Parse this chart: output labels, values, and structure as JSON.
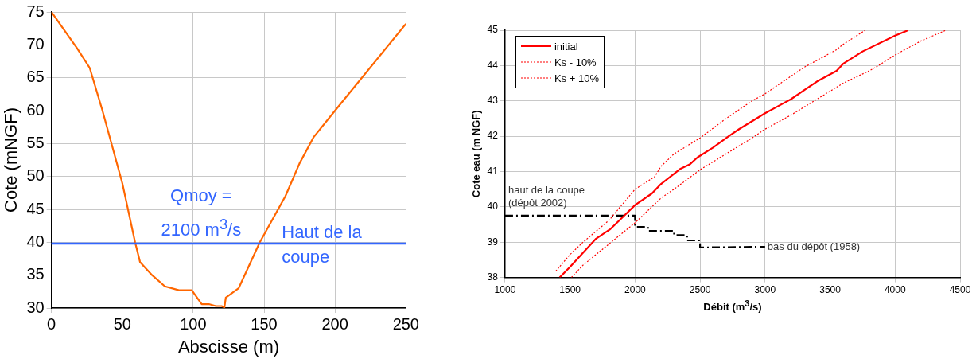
{
  "chart_data": [
    {
      "type": "line",
      "xlabel": "Abscisse (m)",
      "ylabel": "Cote (mNGF)",
      "xlim": [
        0,
        250
      ],
      "ylim": [
        30,
        75
      ],
      "xticks": [
        0,
        50,
        100,
        150,
        200,
        250
      ],
      "yticks": [
        30,
        35,
        40,
        45,
        50,
        55,
        60,
        65,
        70,
        75
      ],
      "grid": true,
      "marker": "none",
      "line_style": "solid",
      "series": [
        {
          "color": "#ff6600",
          "x": [
            0,
            18,
            27,
            36,
            50,
            59,
            62.5,
            71,
            80,
            90,
            99,
            102,
            106,
            111,
            116,
            120,
            122,
            123,
            132,
            147,
            165,
            175,
            185,
            200,
            250
          ],
          "values": [
            75,
            69.5,
            66.5,
            60,
            49,
            40,
            37,
            35,
            33.3,
            32.7,
            32.7,
            31.8,
            30.6,
            30.6,
            30.3,
            30.3,
            30.1,
            31.6,
            33,
            40,
            47,
            52,
            56,
            60,
            73.2
          ]
        }
      ],
      "ref_lines": [
        {
          "axis": "y",
          "value": 39.8,
          "label": "Haut de la coupe",
          "color": "#3366ff"
        }
      ],
      "annotations": [
        "Qmoy = 2100 m$^{3}$/s"
      ]
    },
    {
      "type": "line",
      "xlabel": "Débit (m$^{3}$/s)",
      "ylabel": "Cote eau (m NGF)",
      "xlim": [
        1000,
        4500
      ],
      "ylim": [
        38,
        45
      ],
      "xticks": [
        1000,
        1500,
        2000,
        2500,
        3000,
        3500,
        4000,
        4500
      ],
      "yticks": [
        38,
        39,
        40,
        41,
        42,
        43,
        44,
        45
      ],
      "grid": true,
      "legend": "top left",
      "marker": "none",
      "series": [
        {
          "name": "initial",
          "color": "#ff0000",
          "line_style": "solid",
          "x": [
            1420,
            1500,
            1600,
            1700,
            1810,
            1880,
            2000,
            2130,
            2200,
            2350,
            2420,
            2480,
            2600,
            2720,
            2800,
            3000,
            3100,
            3200,
            3320,
            3400,
            3550,
            3600,
            3750,
            4000,
            4100
          ],
          "values": [
            38,
            38.3,
            38.7,
            39.1,
            39.37,
            39.62,
            40.05,
            40.38,
            40.65,
            41.08,
            41.2,
            41.4,
            41.68,
            42,
            42.2,
            42.65,
            42.85,
            43.05,
            43.35,
            43.55,
            43.85,
            44.05,
            44.4,
            44.85,
            45
          ]
        },
        {
          "name": "Ks - 10%",
          "color": "#ff0000",
          "line_style": "dotted",
          "x": [
            1390,
            1500,
            1600,
            1800,
            2000,
            2150,
            2200,
            2300,
            2500,
            2700,
            2900,
            3000,
            3200,
            3300,
            3500,
            3550,
            3600,
            3770
          ],
          "values": [
            38.18,
            38.65,
            39,
            39.62,
            40.5,
            40.85,
            41.15,
            41.5,
            41.95,
            42.5,
            43,
            43.2,
            43.7,
            43.95,
            44.35,
            44.45,
            44.6,
            45
          ]
        },
        {
          "name": "Ks + 10%",
          "color": "#ff0000",
          "line_style": "dotted",
          "x": [
            1510,
            1600,
            1800,
            2000,
            2200,
            2300,
            2500,
            2700,
            2900,
            3000,
            3200,
            3400,
            3600,
            3800,
            3850,
            4000,
            4200,
            4390
          ],
          "values": [
            38,
            38.35,
            38.95,
            39.55,
            40.25,
            40.5,
            41.05,
            41.5,
            41.95,
            42.2,
            42.6,
            43.05,
            43.5,
            43.85,
            43.95,
            44.3,
            44.7,
            45
          ]
        },
        {
          "color": "#000000",
          "line_style": "dashed",
          "x": [
            1000,
            2000,
            2000,
            2100,
            2100,
            2300,
            2300,
            2400,
            2400,
            2500,
            2500,
            3000
          ],
          "values": [
            39.75,
            39.75,
            39.43,
            39.43,
            39.32,
            39.32,
            39.2,
            39.2,
            39.05,
            39.05,
            38.85,
            38.87
          ]
        }
      ],
      "annotations": [
        {
          "text": "haut de la coupe (dépôt 2002)",
          "x": 1000,
          "y": 39.75
        },
        {
          "text": "bas du dépôt (1958)",
          "x": 3000,
          "y": 38.87
        }
      ]
    }
  ]
}
